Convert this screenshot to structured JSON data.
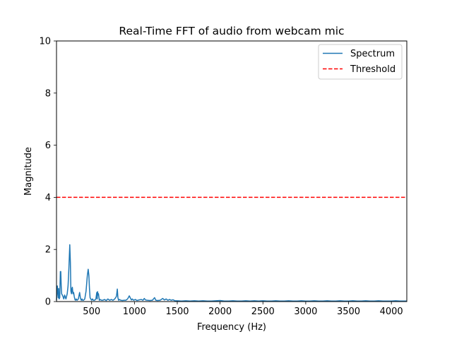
{
  "chart_data": {
    "type": "line",
    "title": "Real-Time FFT of audio from webcam mic",
    "xlabel": "Frequency (Hz)",
    "ylabel": "Magnitude",
    "xlim": [
      90,
      4180
    ],
    "ylim": [
      0,
      10
    ],
    "xticks": [
      500,
      1000,
      1500,
      2000,
      2500,
      3000,
      3500,
      4000
    ],
    "xtick_labels": [
      "500",
      "1000",
      "1500",
      "2000",
      "2500",
      "3000",
      "3500",
      "4000"
    ],
    "yticks": [
      0,
      2,
      4,
      6,
      8,
      10
    ],
    "ytick_labels": [
      "0",
      "2",
      "4",
      "6",
      "8",
      "10"
    ],
    "grid": false,
    "legend_position": "top-right",
    "series": [
      {
        "name": "Spectrum",
        "color": "#1f77b4",
        "style": "solid",
        "x": [
          90,
          100,
          110,
          115,
          120,
          128,
          135,
          140,
          145,
          150,
          158,
          165,
          175,
          185,
          200,
          215,
          225,
          235,
          245,
          252,
          258,
          265,
          270,
          275,
          282,
          290,
          297,
          305,
          312,
          320,
          330,
          345,
          360,
          370,
          380,
          388,
          395,
          405,
          420,
          435,
          450,
          460,
          468,
          475,
          482,
          490,
          500,
          510,
          520,
          535,
          550,
          560,
          565,
          570,
          575,
          580,
          590,
          600,
          615,
          630,
          650,
          670,
          690,
          710,
          730,
          750,
          770,
          790,
          800,
          807,
          815,
          825,
          840,
          860,
          880,
          900,
          920,
          940,
          955,
          965,
          975,
          990,
          1010,
          1030,
          1050,
          1080,
          1100,
          1115,
          1130,
          1150,
          1180,
          1210,
          1235,
          1250,
          1270,
          1300,
          1330,
          1350,
          1370,
          1390,
          1410,
          1430,
          1450,
          1475,
          1500,
          1550,
          1600,
          1650,
          1700,
          1750,
          1800,
          1850,
          1900,
          1950,
          2000,
          2050,
          2100,
          2150,
          2200,
          2250,
          2300,
          2350,
          2400,
          2450,
          2500,
          2550,
          2600,
          2650,
          2700,
          2750,
          2800,
          2850,
          2900,
          2950,
          3000,
          3050,
          3100,
          3150,
          3200,
          3250,
          3300,
          3350,
          3400,
          3450,
          3500,
          3550,
          3600,
          3650,
          3700,
          3750,
          3800,
          3850,
          3900,
          3950,
          4000,
          4050,
          4100,
          4150,
          4180
        ],
        "y": [
          0.05,
          0.6,
          0.15,
          0.5,
          0.1,
          0.15,
          1.15,
          1.15,
          0.6,
          0.3,
          0.25,
          0.2,
          0.1,
          0.25,
          0.1,
          0.3,
          0.6,
          1.3,
          2.18,
          1.5,
          0.4,
          0.3,
          0.5,
          0.55,
          0.3,
          0.35,
          0.2,
          0.08,
          0.05,
          0.1,
          0.05,
          0.1,
          0.35,
          0.12,
          0.05,
          0.1,
          0.05,
          0.05,
          0.1,
          0.4,
          1.0,
          1.24,
          1.0,
          0.5,
          0.15,
          0.1,
          0.05,
          0.1,
          0.05,
          0.05,
          0.1,
          0.35,
          0.1,
          0.38,
          0.25,
          0.3,
          0.05,
          0.08,
          0.05,
          0.05,
          0.08,
          0.04,
          0.1,
          0.05,
          0.08,
          0.05,
          0.1,
          0.2,
          0.48,
          0.15,
          0.05,
          0.08,
          0.05,
          0.04,
          0.05,
          0.05,
          0.1,
          0.22,
          0.12,
          0.06,
          0.1,
          0.05,
          0.08,
          0.04,
          0.06,
          0.08,
          0.05,
          0.12,
          0.06,
          0.05,
          0.04,
          0.05,
          0.15,
          0.05,
          0.04,
          0.05,
          0.12,
          0.06,
          0.1,
          0.05,
          0.08,
          0.05,
          0.07,
          0.03,
          0.03,
          0.02,
          0.03,
          0.02,
          0.03,
          0.02,
          0.03,
          0.02,
          0.02,
          0.03,
          0.04,
          0.02,
          0.02,
          0.03,
          0.02,
          0.02,
          0.03,
          0.02,
          0.03,
          0.02,
          0.03,
          0.02,
          0.02,
          0.03,
          0.02,
          0.02,
          0.03,
          0.02,
          0.02,
          0.03,
          0.02,
          0.02,
          0.03,
          0.02,
          0.02,
          0.03,
          0.02,
          0.02,
          0.03,
          0.02,
          0.02,
          0.03,
          0.02,
          0.02,
          0.03,
          0.02,
          0.02,
          0.03,
          0.02,
          0.02,
          0.02,
          0.03,
          0.02,
          0.02,
          0.02
        ]
      },
      {
        "name": "Threshold",
        "color": "#ff0000",
        "style": "dashed",
        "x": [
          90,
          4180
        ],
        "y": [
          4,
          4
        ]
      }
    ]
  }
}
